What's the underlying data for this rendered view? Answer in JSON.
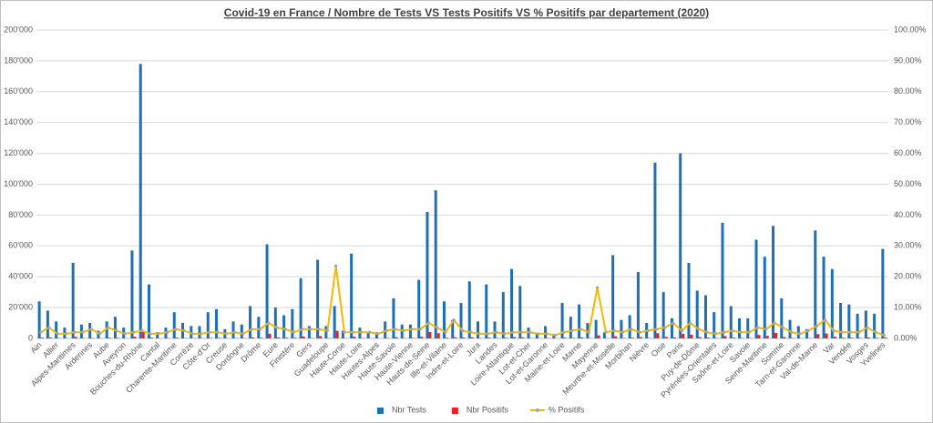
{
  "chart_data": {
    "type": "bar_line",
    "title": "Covid-19 en France / Nombre de Tests VS Tests Positifs VS % Positifs par departement (2020)",
    "categories": [
      "Ain",
      null,
      "Allier",
      null,
      "Alpes-Maritimes",
      null,
      "Ardennes",
      null,
      "Aube",
      null,
      "Aveyron",
      null,
      "Bouches-du-Rhône",
      null,
      "Cantal",
      null,
      "Charente-Maritime",
      null,
      "Corrèze",
      null,
      "Côte-d'Or",
      null,
      "Creuse",
      null,
      "Dordogne",
      null,
      "Drôme",
      null,
      "Eure",
      null,
      "Finistère",
      null,
      "Gers",
      null,
      "Guadeloupe",
      null,
      "Haute-Corse",
      null,
      "Haute-Loire",
      null,
      "Hautes-Alpes",
      null,
      "Haute-Savoie",
      null,
      "Haute-Vienne",
      null,
      "Hauts-de-Seine",
      null,
      "Ille-et-Vilaine",
      null,
      "Indre-et-Loire",
      null,
      "Jura",
      null,
      "Landes",
      null,
      "Loire-Atlantique",
      null,
      "Lot-et-Cher",
      null,
      "Lot-et-Garonne",
      null,
      "Maine-et-Loire",
      null,
      "Marne",
      null,
      "Mayenne",
      null,
      "Meurthe-et-Moselle",
      null,
      "Morbihan",
      null,
      "Nièvre",
      null,
      "Oise",
      null,
      "Paris",
      null,
      "Puy-de-Dôme",
      null,
      "Pyrénées-Orientales",
      null,
      "Saône-et-Loire",
      null,
      "Savoie",
      null,
      "Seine-Maritime",
      null,
      "Somme",
      null,
      "Tarn-et-Garonne",
      null,
      "Val-de-Marne",
      null,
      "Var",
      null,
      "Vendée",
      null,
      "Vosges",
      null,
      "Yvelines"
    ],
    "series": [
      {
        "name": "Nbr Tests",
        "color": "#1f6fb5",
        "values": [
          24000,
          18000,
          11000,
          7000,
          49000,
          9000,
          10000,
          5000,
          11000,
          14000,
          7000,
          57000,
          178000,
          35000,
          4000,
          7000,
          17000,
          10000,
          8000,
          8000,
          17000,
          19000,
          6000,
          11000,
          9000,
          21000,
          14000,
          61000,
          20000,
          15000,
          19000,
          39000,
          8000,
          51000,
          8000,
          21000,
          5000,
          55000,
          7000,
          4000,
          4000,
          11000,
          26000,
          9000,
          9000,
          38000,
          82000,
          96000,
          24000,
          12000,
          23000,
          37000,
          11000,
          35000,
          11000,
          30000,
          45000,
          34000,
          7000,
          3000,
          8000,
          3000,
          23000,
          14000,
          22000,
          10000,
          12000,
          4000,
          54000,
          12000,
          15000,
          43000,
          10000,
          114000,
          30000,
          13000,
          120000,
          49000,
          31000,
          28000,
          17000,
          75000,
          21000,
          13000,
          13000,
          64000,
          53000,
          73000,
          26000,
          12000,
          8000,
          6000,
          70000,
          53000,
          45000,
          23000,
          22000,
          16000,
          18000,
          16000,
          58000
        ]
      },
      {
        "name": "Nbr Positifs",
        "color": "#e8202a",
        "values": [
          500,
          630,
          200,
          100,
          1000,
          200,
          300,
          100,
          400,
          350,
          100,
          1100,
          4500,
          500,
          60,
          140,
          500,
          250,
          120,
          120,
          340,
          380,
          90,
          220,
          135,
          630,
          420,
          3000,
          700,
          450,
          380,
          1200,
          240,
          1500,
          200,
          4900,
          100,
          1100,
          140,
          80,
          60,
          280,
          800,
          220,
          270,
          1100,
          4100,
          3400,
          480,
          720,
          580,
          740,
          160,
          500,
          220,
          450,
          900,
          700,
          140,
          50,
          120,
          30,
          460,
          350,
          660,
          200,
          2000,
          80,
          1350,
          240,
          450,
          860,
          250,
          3400,
          1000,
          650,
          3000,
          2400,
          900,
          560,
          250,
          1500,
          520,
          260,
          260,
          2200,
          1600,
          3600,
          900,
          240,
          120,
          150,
          2800,
          3200,
          1100,
          460,
          440,
          320,
          630,
          320,
          580
        ]
      },
      {
        "name": "% Positifs",
        "color": "#f5b800",
        "axis": "y2",
        "values": [
          2,
          3.5,
          1.5,
          1.5,
          2,
          2,
          3,
          1.5,
          3.5,
          2.5,
          1.5,
          2,
          2.5,
          1.5,
          1.5,
          2,
          3,
          2.5,
          1.5,
          1.5,
          2,
          2,
          1.5,
          2,
          1.5,
          3,
          3,
          5,
          3.5,
          3,
          2,
          3,
          3,
          3,
          2.5,
          23.5,
          2,
          2,
          2,
          2,
          1.5,
          2.5,
          3,
          2.5,
          3,
          3,
          5,
          3.5,
          2,
          6,
          2.5,
          2,
          1.5,
          1.5,
          2,
          1.5,
          2,
          2,
          2,
          1.5,
          1.5,
          1,
          2,
          2.5,
          3,
          2,
          16.5,
          2,
          2.5,
          2,
          3,
          2,
          2.5,
          3,
          3.5,
          5,
          2.5,
          5,
          3,
          2,
          1.5,
          2,
          2.5,
          2,
          2,
          3.5,
          3,
          5,
          3.5,
          2,
          1.5,
          2.5,
          4,
          6,
          2.5,
          2,
          2,
          2,
          3.5,
          2,
          1
        ]
      }
    ],
    "ylim": [
      0,
      200000
    ],
    "yticks": [
      {
        "value": 0,
        "label": "0"
      },
      {
        "value": 20000,
        "label": "20'000"
      },
      {
        "value": 40000,
        "label": "40'000"
      },
      {
        "value": 60000,
        "label": "60'000"
      },
      {
        "value": 80000,
        "label": "80'000"
      },
      {
        "value": 100000,
        "label": "100'000"
      },
      {
        "value": 120000,
        "label": "120'000"
      },
      {
        "value": 140000,
        "label": "140'000"
      },
      {
        "value": 160000,
        "label": "160'000"
      },
      {
        "value": 180000,
        "label": "180'000"
      },
      {
        "value": 200000,
        "label": "200'000"
      }
    ],
    "y2lim": [
      0,
      100
    ],
    "y2ticks": [
      {
        "value": 0,
        "label": "0.00%"
      },
      {
        "value": 10,
        "label": "10.00%"
      },
      {
        "value": 20,
        "label": "20.00%"
      },
      {
        "value": 30,
        "label": "30.00%"
      },
      {
        "value": 40,
        "label": "40.00%"
      },
      {
        "value": 50,
        "label": "50.00%"
      },
      {
        "value": 60,
        "label": "60.00%"
      },
      {
        "value": 70,
        "label": "70.00%"
      },
      {
        "value": 80,
        "label": "80.00%"
      },
      {
        "value": 90,
        "label": "90.00%"
      },
      {
        "value": 100,
        "label": "100.00%"
      }
    ],
    "grid": true,
    "legend": "bottom"
  }
}
